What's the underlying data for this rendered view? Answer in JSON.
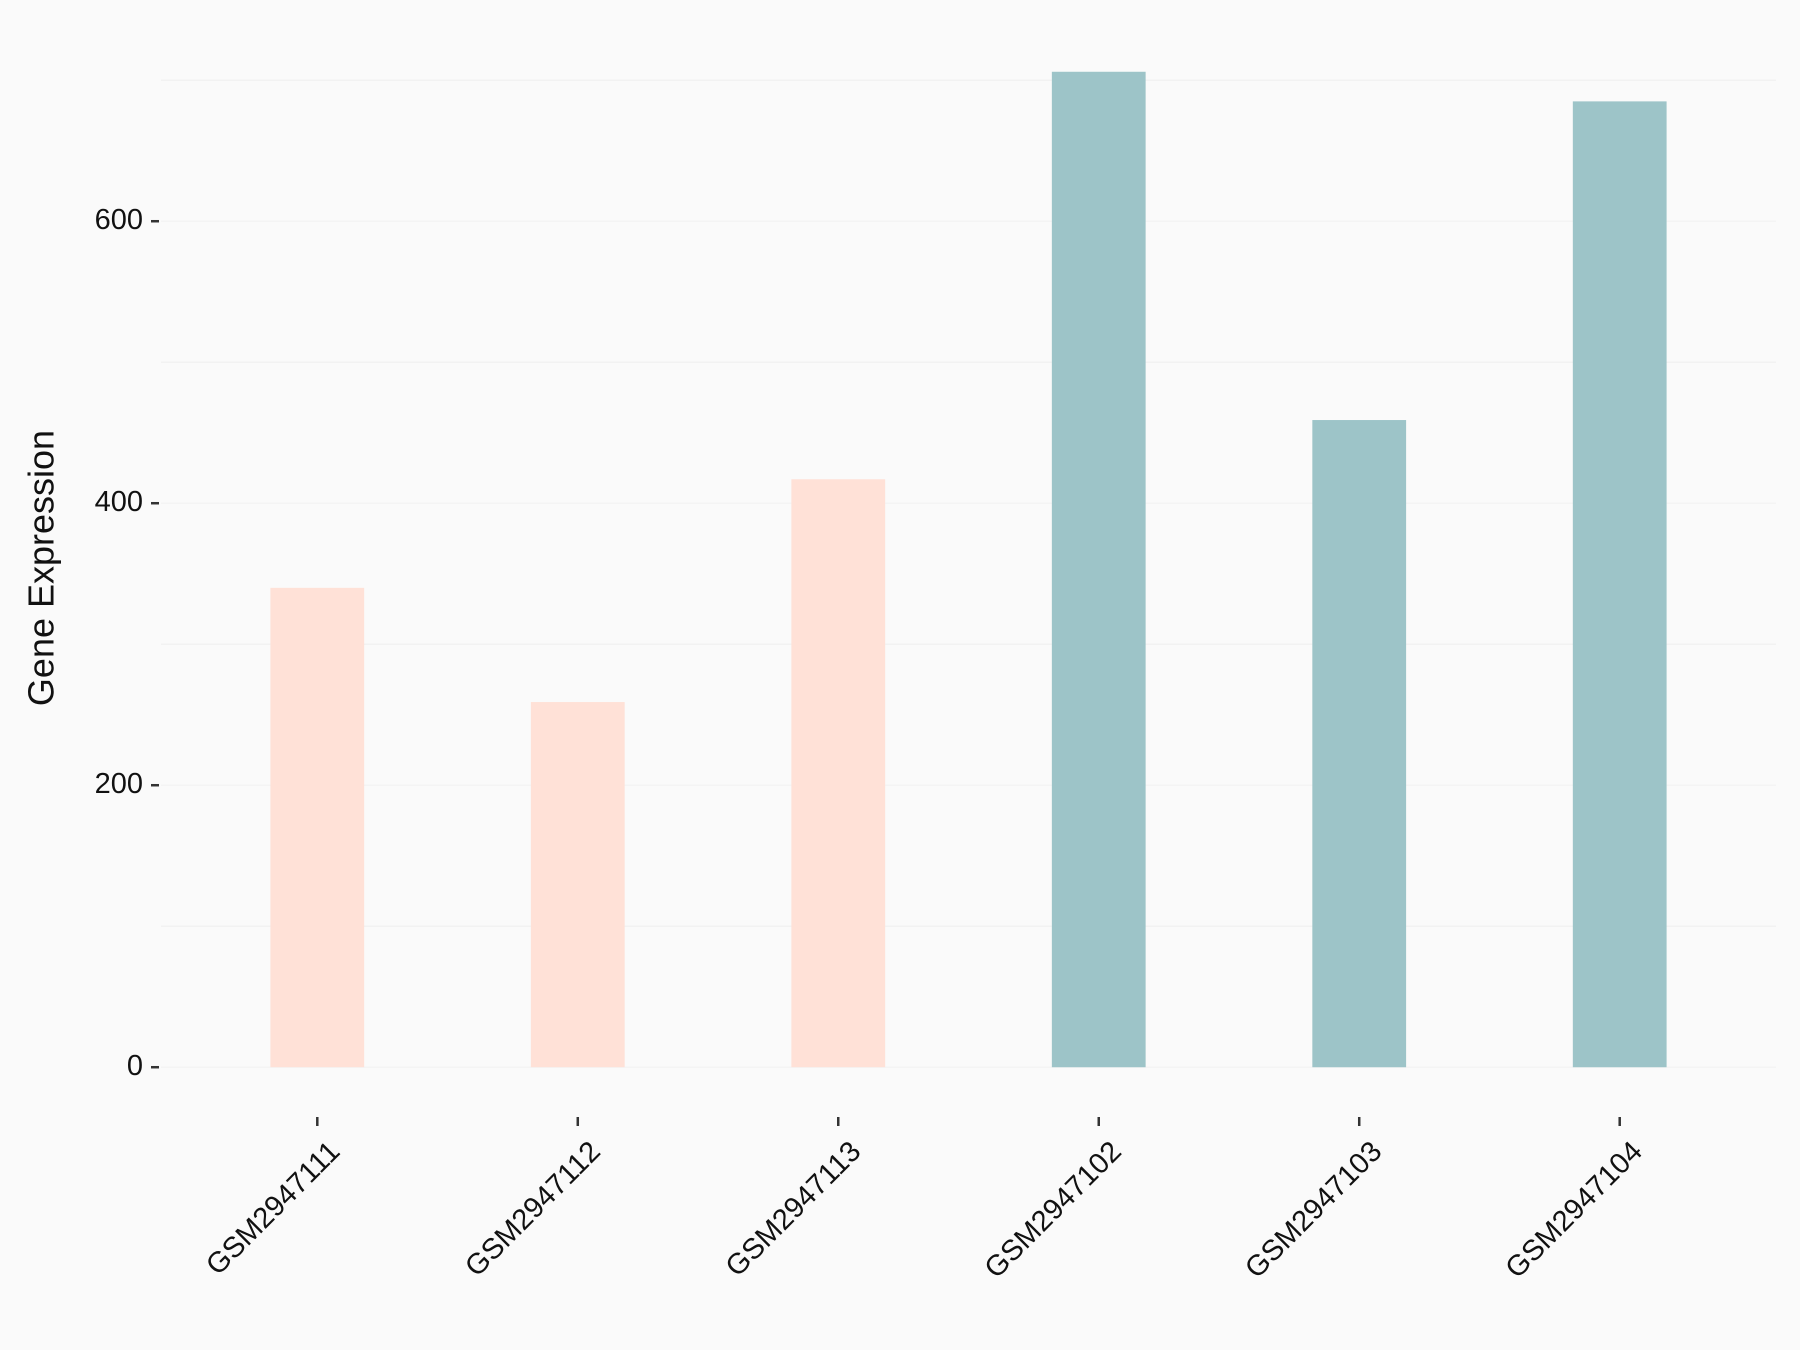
{
  "chart_data": {
    "type": "bar",
    "y_label": "Gene Expression",
    "categories": [
      "GSM2947111",
      "GSM2947112",
      "GSM2947113",
      "GSM2947102",
      "GSM2947103",
      "GSM2947104"
    ],
    "values": [
      340,
      259,
      417,
      706,
      459,
      685
    ],
    "colors": [
      "#FFE1D7",
      "#FFE1D7",
      "#FFE1D7",
      "#9DC4C8",
      "#9DC4C8",
      "#9DC4C8"
    ],
    "ylim": [
      -35.3,
      741.3
    ],
    "yticks": [
      0,
      200,
      400,
      600
    ],
    "minor_yticks": [
      100,
      300,
      500,
      700
    ],
    "grid": true
  }
}
